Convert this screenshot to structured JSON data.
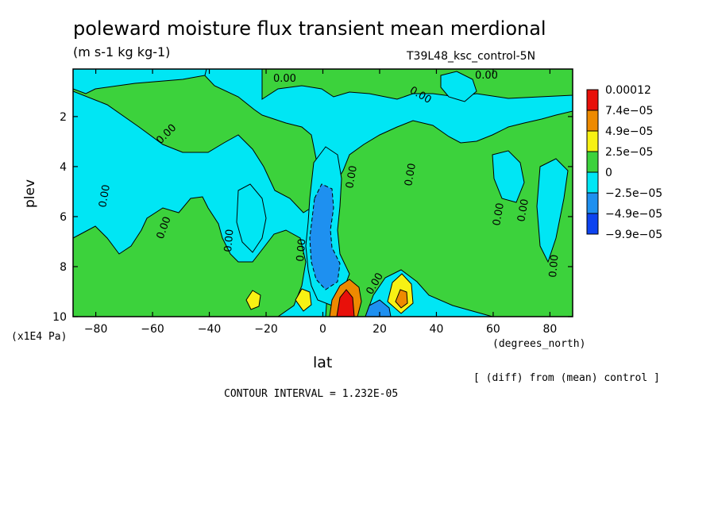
{
  "title": "poleward moisture flux transient mean merdional",
  "units": "(m s-1 kg kg-1)",
  "run_label": "T39L48_ksc_control-5N",
  "diff_note": "[ (diff) from (mean) control ]",
  "contour_interval": "CONTOUR INTERVAL = 1.232E-05",
  "chart_data": {
    "type": "heatmap",
    "xlabel": "lat",
    "xunits": "(degrees_north)",
    "ylabel": "plev",
    "yunits": "(x1E4 Pa)",
    "xlim": [
      -88,
      88
    ],
    "ylim": [
      10,
      0.1
    ],
    "xticks": [
      -80,
      -60,
      -40,
      -20,
      0,
      20,
      40,
      60,
      80
    ],
    "xtick_labels": [
      "−80",
      "−60",
      "−40",
      "−20",
      "0",
      "20",
      "40",
      "60",
      "80"
    ],
    "yticks": [
      2,
      4,
      6,
      8,
      10
    ],
    "ytick_labels": [
      "2",
      "4",
      "6",
      "8",
      "10"
    ],
    "levels": [
      -9.9e-05,
      -4.9e-05,
      -2.5e-05,
      0,
      2.5e-05,
      4.9e-05,
      7.4e-05,
      0.00012
    ],
    "colorbar": {
      "labels": [
        "0.00012",
        "7.4e−05",
        "4.9e−05",
        "2.5e−05",
        "0",
        "−2.5e−05",
        "−4.9e−05",
        "−9.9e−05"
      ],
      "colors": [
        "#e8100a",
        "#ee8a00",
        "#f7f114",
        "#3cd23c",
        "#00e6f4",
        "#1e90f0",
        "#0d43f0"
      ]
    },
    "contour_labels": [
      "0.00",
      "0.00",
      "0.00",
      "0.00",
      "0.00",
      "0.00",
      "0.00",
      "0.00",
      "0.00",
      "0.00",
      "0.00",
      "0.00",
      "0.00",
      "0.00"
    ],
    "features": [
      {
        "lat": 8,
        "plev": 9.6,
        "value": 0.0001
      },
      {
        "lat": 28,
        "plev": 9.3,
        "value": 6e-05
      },
      {
        "lat": -25,
        "plev": 9.3,
        "value": 3e-05
      },
      {
        "lat": 2,
        "plev": 8.2,
        "value": -5e-05
      },
      {
        "lat": 18,
        "plev": 9.9,
        "value": -8e-05
      }
    ]
  }
}
